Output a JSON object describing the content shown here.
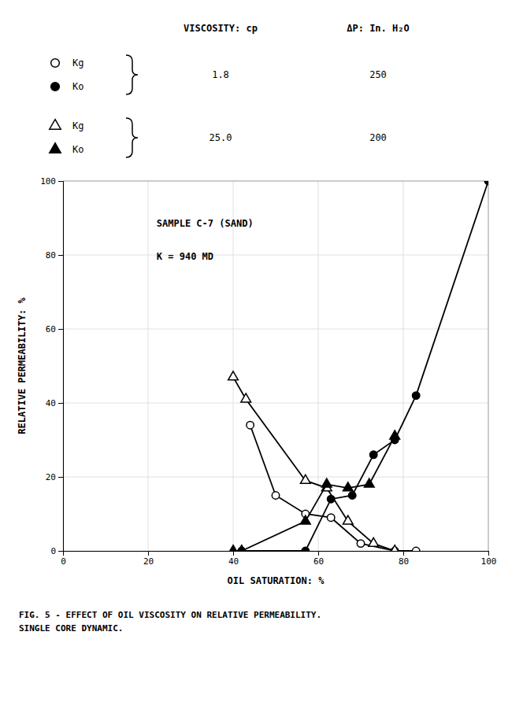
{
  "chart_data": {
    "type": "line",
    "x_label": "OIL SATURATION: %",
    "y_label": "RELATIVE PERMEABILITY: %",
    "annotations": [
      "SAMPLE C-7 (SAND)",
      "K = 940 MD"
    ],
    "caption": "FIG. 5 - EFFECT OF OIL VISCOSITY ON RELATIVE PERMEABILITY.\nSINGLE CORE DYNAMIC.",
    "legend_columns": [
      "VISCOSITY: cp",
      "ΔP: In. H₂O"
    ],
    "xlim": [
      0,
      100
    ],
    "ylim": [
      0,
      100
    ],
    "xticks": [
      0,
      20,
      40,
      60,
      80,
      100
    ],
    "yticks": [
      0,
      20,
      40,
      60,
      80,
      100
    ],
    "grid": true,
    "series": [
      {
        "name": "Kg",
        "marker": "circle-open",
        "color": "#000000",
        "viscosity": "1.8",
        "dp": "250",
        "x": [
          44,
          50,
          57,
          63,
          70,
          78,
          83
        ],
        "values": [
          34,
          15,
          10,
          9,
          2,
          0,
          0
        ]
      },
      {
        "name": "Ko",
        "marker": "circle",
        "color": "#000000",
        "viscosity": "1.8",
        "dp": "250",
        "x": [
          42,
          57,
          63,
          68,
          73,
          78,
          83,
          100
        ],
        "values": [
          0,
          0,
          14,
          15,
          26,
          30,
          42,
          100
        ]
      },
      {
        "name": "Kg",
        "marker": "triangle-open",
        "color": "#000000",
        "viscosity": "25.0",
        "dp": "200",
        "x": [
          40,
          43,
          57,
          62,
          67,
          73,
          78
        ],
        "values": [
          47,
          41,
          19,
          17,
          8,
          2,
          0
        ]
      },
      {
        "name": "Ko",
        "marker": "triangle",
        "color": "#000000",
        "viscosity": "25.0",
        "dp": "200",
        "x": [
          40,
          42,
          57,
          62,
          67,
          72,
          78
        ],
        "values": [
          0,
          0,
          8,
          18,
          17,
          18,
          31
        ]
      }
    ]
  }
}
